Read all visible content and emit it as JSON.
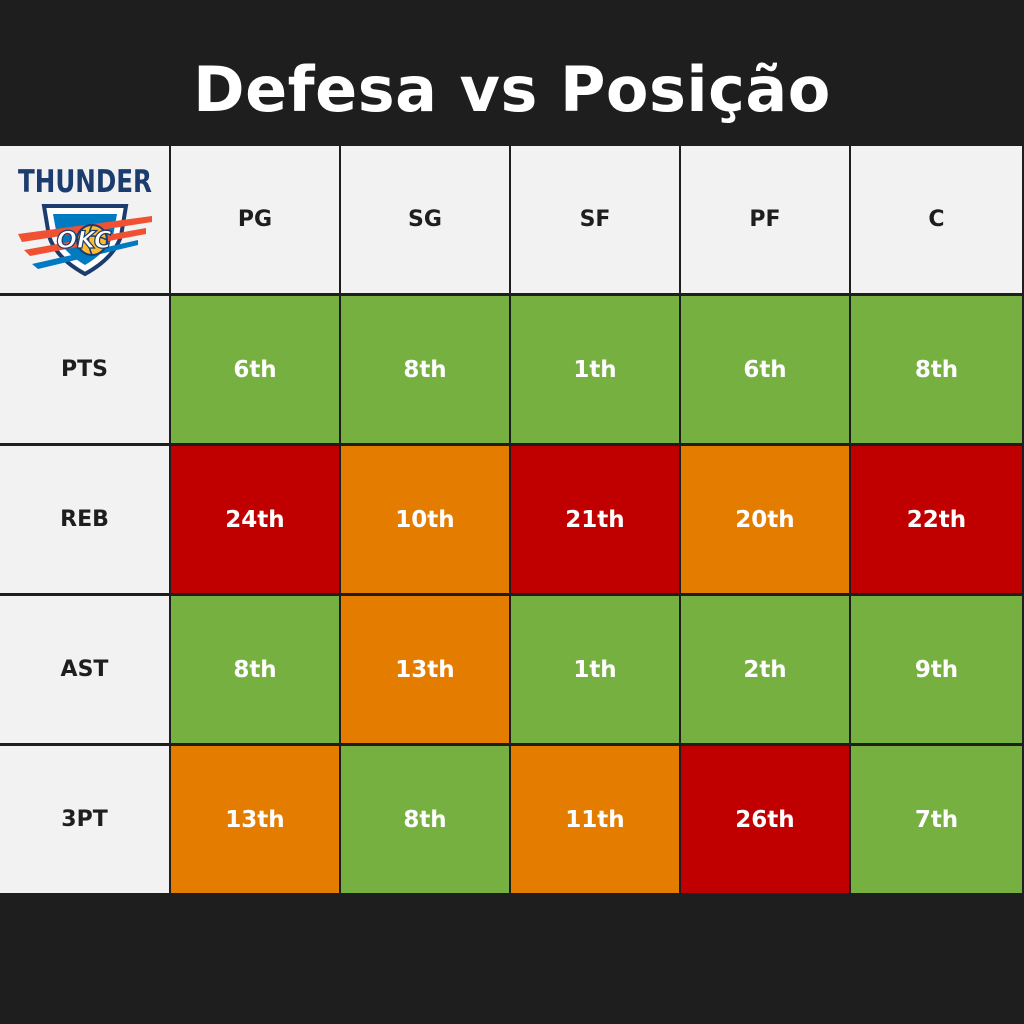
{
  "title": "Defesa vs Posição",
  "logo": {
    "text": "THUNDER",
    "badge": "OKC",
    "icon": "okc-thunder-logo"
  },
  "colors": {
    "background": "#1e1e1e",
    "header": "#f2f2f2",
    "good": "#76b041",
    "mid": "#e47c00",
    "bad": "#c00000"
  },
  "chart_data": {
    "type": "table",
    "title": "Defesa vs Posição",
    "columns": [
      "PG",
      "SG",
      "SF",
      "PF",
      "C"
    ],
    "rows": [
      {
        "label": "PTS",
        "values": [
          "6th",
          "8th",
          "1th",
          "6th",
          "8th"
        ],
        "levels": [
          "good",
          "good",
          "good",
          "good",
          "good"
        ]
      },
      {
        "label": "REB",
        "values": [
          "24th",
          "10th",
          "21th",
          "20th",
          "22th"
        ],
        "levels": [
          "bad",
          "mid",
          "bad",
          "mid",
          "bad"
        ]
      },
      {
        "label": "AST",
        "values": [
          "8th",
          "13th",
          "1th",
          "2th",
          "9th"
        ],
        "levels": [
          "good",
          "mid",
          "good",
          "good",
          "good"
        ]
      },
      {
        "label": "3PT",
        "values": [
          "13th",
          "8th",
          "11th",
          "26th",
          "7th"
        ],
        "levels": [
          "mid",
          "good",
          "mid",
          "bad",
          "good"
        ]
      }
    ]
  }
}
